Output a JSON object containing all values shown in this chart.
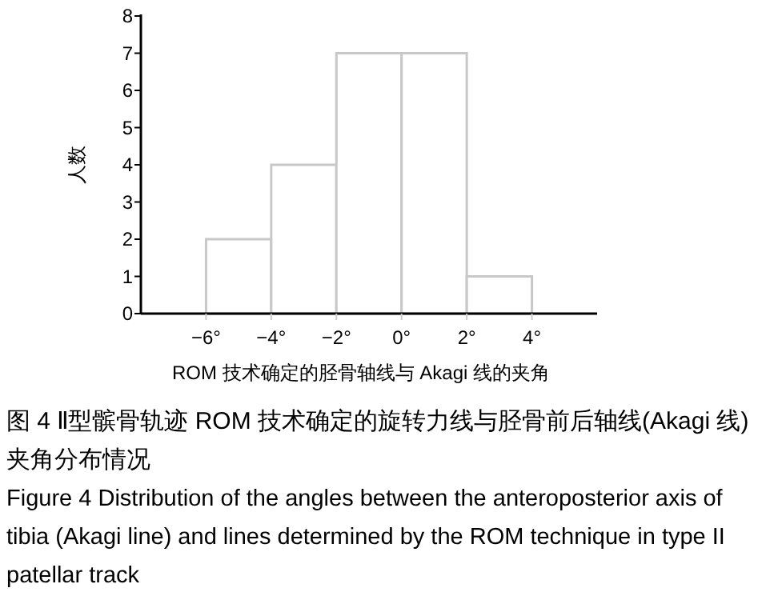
{
  "chart_data": {
    "type": "histogram",
    "xlabel": "ROM 技术确定的胫骨轴线与 Akagi 线的夹角",
    "ylabel": "人数",
    "bins": [
      -6,
      -4,
      -2,
      0,
      2,
      4
    ],
    "values": [
      2,
      4,
      7,
      7,
      1
    ],
    "color": "#c8c8c8",
    "xlim": [
      -8,
      6
    ],
    "xticks": [
      {
        "value": -6,
        "label": "−6°"
      },
      {
        "value": -4,
        "label": "−4°"
      },
      {
        "value": -2,
        "label": "−2°"
      },
      {
        "value": 0,
        "label": "0°"
      },
      {
        "value": 2,
        "label": "2°"
      },
      {
        "value": 4,
        "label": "4°"
      }
    ],
    "ylim": [
      0,
      8
    ],
    "yticks": [
      0,
      1,
      2,
      3,
      4,
      5,
      6,
      7,
      8
    ],
    "annotations": [
      "图 4 Ⅱ型髌骨轨迹 ROM 技术确定的旋转力线与胫骨前后轴线(Akagi 线)夹角分布情况",
      "Figure 4 Distribution of the angles between the anteroposterior axis of tibia (Akagi line) and lines determined by the ROM technique in type II patellar track"
    ]
  }
}
